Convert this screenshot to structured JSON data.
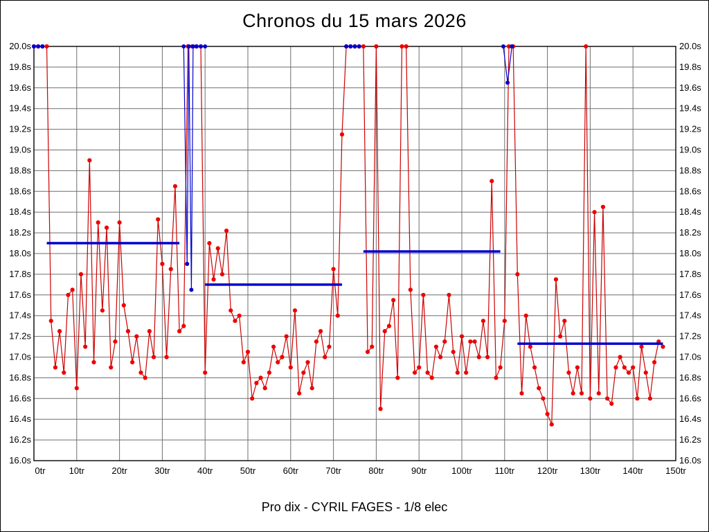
{
  "chart_data": {
    "type": "line",
    "title": "Chronos du 15 mars 2026",
    "footer": "Pro dix - CYRIL FAGES - 1/8 elec",
    "xlim": [
      0,
      150
    ],
    "ylim": [
      16.0,
      20.0
    ],
    "x_tick_step": 10,
    "x_tick_suffix": "tr",
    "y_tick_step": 0.2,
    "y_tick_suffix": "s",
    "grid": true,
    "legend": "none",
    "colors": {
      "lap_line": "#cc0000",
      "lap_marker": "#ee0000",
      "average": "#0000cc",
      "grid": "#6e6e6e",
      "axis": "#000000",
      "background": "#ffffff"
    },
    "lap_series": {
      "name": "lap-times-seconds",
      "x_start": 0,
      "y": [
        20.0,
        20.0,
        20.0,
        20.0,
        17.35,
        16.9,
        17.25,
        16.85,
        17.6,
        17.65,
        16.7,
        17.8,
        17.1,
        18.9,
        16.95,
        18.3,
        17.45,
        18.25,
        16.9,
        17.15,
        18.3,
        17.5,
        17.25,
        16.95,
        17.2,
        16.85,
        16.8,
        17.25,
        17.0,
        18.33,
        17.9,
        17.0,
        17.85,
        18.65,
        17.25,
        17.3,
        20.0,
        20.0,
        20.0,
        20.0,
        16.85,
        18.1,
        17.75,
        18.05,
        17.8,
        18.22,
        17.45,
        17.35,
        17.4,
        16.95,
        17.05,
        16.6,
        16.75,
        16.8,
        16.7,
        16.85,
        17.1,
        16.95,
        17.0,
        17.2,
        16.9,
        17.45,
        16.65,
        16.85,
        16.95,
        16.7,
        17.15,
        17.25,
        17.0,
        17.1,
        17.85,
        17.4,
        19.15,
        20.0,
        20.0,
        20.0,
        20.0,
        20.0,
        17.05,
        17.1,
        20.0,
        16.5,
        17.25,
        17.3,
        17.55,
        16.8,
        20.0,
        20.0,
        17.65,
        16.85,
        16.9,
        17.6,
        16.85,
        16.8,
        17.1,
        17.0,
        17.15,
        17.6,
        17.05,
        16.85,
        17.2,
        16.85,
        17.15,
        17.15,
        17.0,
        17.35,
        17.0,
        18.7,
        16.8,
        16.9,
        17.35,
        20.0,
        20.0,
        17.8,
        16.65,
        17.4,
        17.1,
        16.9,
        16.7,
        16.6,
        16.45,
        16.35,
        17.75,
        17.2,
        17.35,
        16.85,
        16.65,
        16.9,
        16.65,
        20.0,
        16.6,
        18.4,
        16.65,
        18.45,
        16.6,
        16.55,
        16.9,
        17.0,
        16.9,
        16.85,
        16.9,
        16.6,
        17.1,
        16.85,
        16.6,
        16.95,
        17.15,
        17.1
      ]
    },
    "average_segments": [
      {
        "name": "heat-1-average",
        "x1": 3,
        "x2": 34,
        "y": 18.1
      },
      {
        "name": "heat-2-average",
        "x1": 40,
        "x2": 72,
        "y": 17.7
      },
      {
        "name": "heat-3-average",
        "x1": 77,
        "x2": 109,
        "y": 18.02
      },
      {
        "name": "heat-4-average",
        "x1": 113,
        "x2": 147,
        "y": 17.13
      }
    ],
    "blue_series": [
      {
        "x": [
          0,
          1,
          2
        ],
        "y": [
          20.0,
          20.0,
          20.0
        ]
      },
      {
        "x": [
          35,
          35.8,
          36.2,
          36.8,
          37.2,
          38,
          39,
          40
        ],
        "y": [
          20.0,
          17.9,
          20.0,
          17.65,
          20.0,
          20.0,
          20.0,
          20.0
        ]
      },
      {
        "x": [
          73,
          74,
          75,
          76
        ],
        "y": [
          20.0,
          20.0,
          20.0,
          20.0
        ]
      },
      {
        "x": [
          109.7,
          110.7,
          111.7
        ],
        "y": [
          20.0,
          19.65,
          20.0
        ]
      }
    ]
  }
}
